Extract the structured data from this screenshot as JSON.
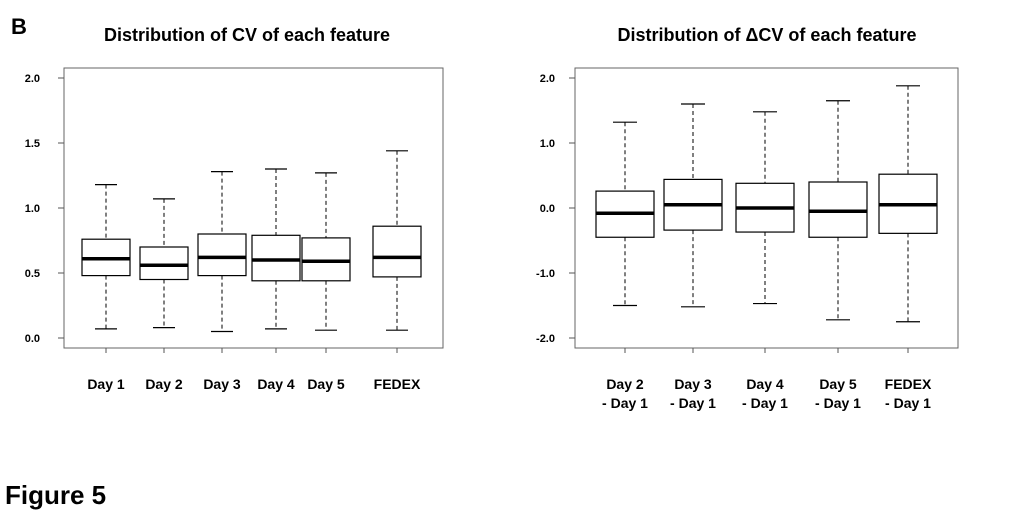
{
  "panel_label": "B",
  "figure_label": "Figure 5",
  "chart_data": [
    {
      "type": "boxplot",
      "title": "Distribution of CV of each feature",
      "ylim": [
        0,
        2.0
      ],
      "yticks": [
        0.0,
        0.5,
        1.0,
        1.5,
        2.0
      ],
      "ytick_labels": [
        "0.0",
        "0.5",
        "1.0",
        "1.5",
        "2.0"
      ],
      "categories": [
        "Day 1",
        "Day 2",
        "Day 3",
        "Day 4",
        "Day 5",
        "FEDEX"
      ],
      "boxes": [
        {
          "min": 0.07,
          "q1": 0.48,
          "median": 0.61,
          "q3": 0.76,
          "max": 1.18
        },
        {
          "min": 0.08,
          "q1": 0.45,
          "median": 0.56,
          "q3": 0.7,
          "max": 1.07
        },
        {
          "min": 0.05,
          "q1": 0.48,
          "median": 0.62,
          "q3": 0.8,
          "max": 1.28
        },
        {
          "min": 0.07,
          "q1": 0.44,
          "median": 0.6,
          "q3": 0.79,
          "max": 1.3
        },
        {
          "min": 0.06,
          "q1": 0.44,
          "median": 0.59,
          "q3": 0.77,
          "max": 1.27
        },
        {
          "min": 0.06,
          "q1": 0.47,
          "median": 0.62,
          "q3": 0.86,
          "max": 1.44
        }
      ]
    },
    {
      "type": "boxplot",
      "title": "Distribution of ΔCV of each feature",
      "ylim": [
        -2.0,
        2.0
      ],
      "yticks": [
        -2.0,
        -1.0,
        0.0,
        1.0,
        2.0
      ],
      "ytick_labels": [
        "-2.0",
        "-1.0",
        "0.0",
        "1.0",
        "2.0"
      ],
      "categories": [
        [
          "Day 2",
          "- Day 1"
        ],
        [
          "Day 3",
          "- Day 1"
        ],
        [
          "Day 4",
          "- Day 1"
        ],
        [
          "Day 5",
          "- Day 1"
        ],
        [
          "FEDEX",
          "- Day 1"
        ]
      ],
      "boxes": [
        {
          "min": -1.5,
          "q1": -0.45,
          "median": -0.08,
          "q3": 0.26,
          "max": 1.32
        },
        {
          "min": -1.52,
          "q1": -0.34,
          "median": 0.05,
          "q3": 0.44,
          "max": 1.6
        },
        {
          "min": -1.47,
          "q1": -0.37,
          "median": 0.0,
          "q3": 0.38,
          "max": 1.48
        },
        {
          "min": -1.72,
          "q1": -0.45,
          "median": -0.05,
          "q3": 0.4,
          "max": 1.65
        },
        {
          "min": -1.75,
          "q1": -0.39,
          "median": 0.05,
          "q3": 0.52,
          "max": 1.88
        }
      ]
    }
  ]
}
